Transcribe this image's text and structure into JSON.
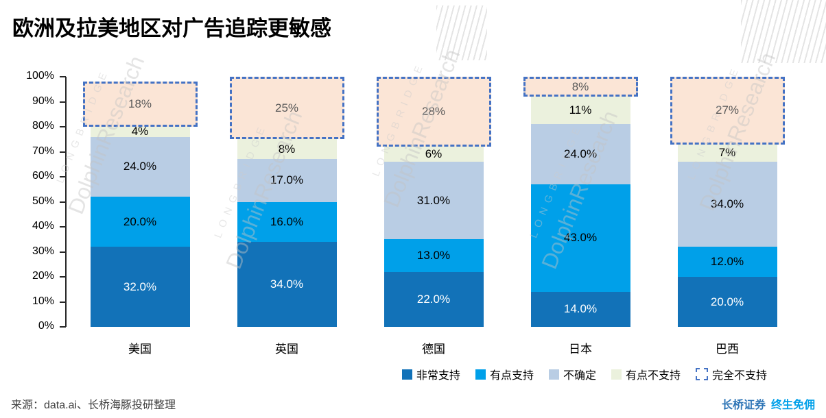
{
  "title": "欧洲及拉美地区对广告追踪更敏感",
  "source": "来源：data.ai、长桥海豚投研整理",
  "footer": {
    "brand": "长桥证券",
    "slogan": "终生免佣"
  },
  "watermark": {
    "line1": "LONGBRIDGE",
    "line2": "DolphinResearch"
  },
  "colors": {
    "strong_support": "#1272B8",
    "some_support": "#00A0E9",
    "uncertain": "#B9CDE4",
    "some_oppose": "#EBF1DD",
    "full_oppose_fill": "#FBE5D6",
    "full_oppose_border": "#4472C4",
    "axis": "#262626"
  },
  "chart_data": {
    "type": "bar",
    "stacked": true,
    "title": "欧洲及拉美地区对广告追踪更敏感",
    "categories": [
      "美国",
      "英国",
      "德国",
      "日本",
      "巴西"
    ],
    "series": [
      {
        "name": "非常支持",
        "color": "#1272B8",
        "text_color": "#ffffff",
        "values": [
          32.0,
          34.0,
          22.0,
          14.0,
          20.0
        ],
        "labels": [
          "32.0%",
          "34.0%",
          "22.0%",
          "14.0%",
          "20.0%"
        ]
      },
      {
        "name": "有点支持",
        "color": "#00A0E9",
        "text_color": "#000000",
        "values": [
          20.0,
          16.0,
          13.0,
          43.0,
          12.0
        ],
        "labels": [
          "20.0%",
          "16.0%",
          "13.0%",
          "43.0%",
          "12.0%"
        ]
      },
      {
        "name": "不确定",
        "color": "#B9CDE4",
        "text_color": "#000000",
        "values": [
          24.0,
          17.0,
          31.0,
          24.0,
          34.0
        ],
        "labels": [
          "24.0%",
          "17.0%",
          "31.0%",
          "24.0%",
          "34.0%"
        ]
      },
      {
        "name": "有点不支持",
        "color": "#EBF1DD",
        "text_color": "#000000",
        "values": [
          4,
          8,
          6,
          11,
          7
        ],
        "labels": [
          "4%",
          "8%",
          "6%",
          "11%",
          "7%"
        ]
      },
      {
        "name": "完全不支持",
        "color": "#FBE5D6",
        "border": "#4472C4",
        "text_color": "#595959",
        "style": "dashed-box",
        "values": [
          18,
          25,
          28,
          8,
          27
        ],
        "labels": [
          "18%",
          "25%",
          "28%",
          "8%",
          "27%"
        ]
      }
    ],
    "xlabel": "",
    "ylabel": "",
    "ylim": [
      0,
      100
    ],
    "grid": false,
    "legend_position": "bottom-right",
    "yticks": [
      "100%",
      "90%",
      "80%",
      "70%",
      "60%",
      "50%",
      "40%",
      "30%",
      "20%",
      "10%",
      "0%"
    ]
  }
}
